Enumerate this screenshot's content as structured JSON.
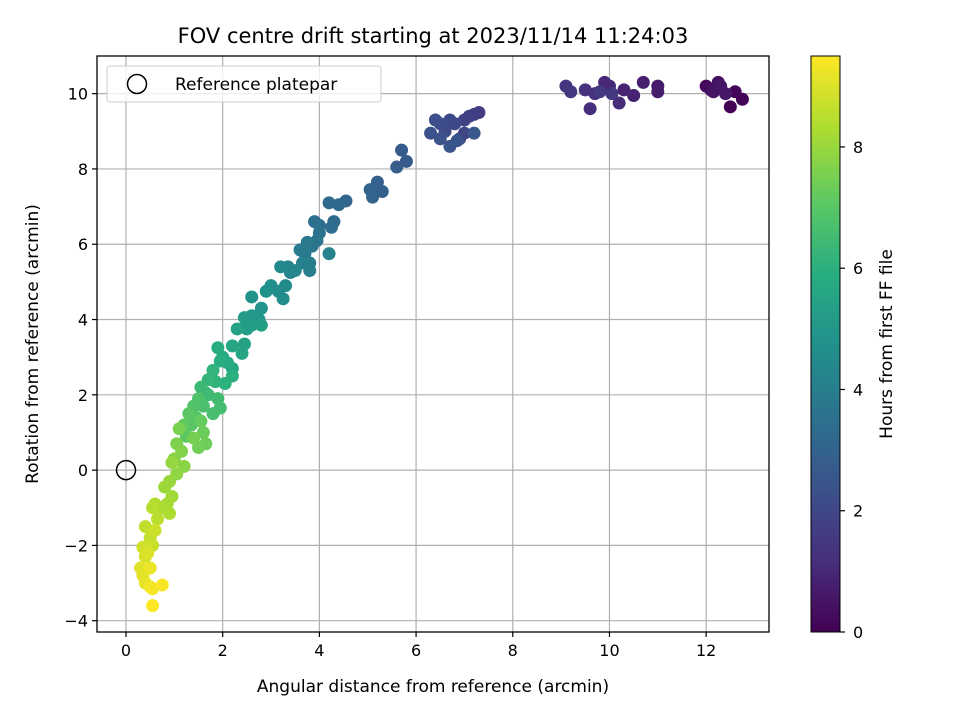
{
  "chart_data": {
    "type": "scatter",
    "title": "FOV centre drift starting at 2023/11/14 11:24:03",
    "xlabel": "Angular distance from reference (arcmin)",
    "ylabel": "Rotation from reference (arcmin)",
    "xlim": [
      -0.6,
      13.3
    ],
    "ylim": [
      -4.3,
      11.0
    ],
    "xticks": [
      0,
      2,
      4,
      6,
      8,
      10,
      12
    ],
    "yticks": [
      -4,
      -2,
      0,
      2,
      4,
      6,
      8,
      10
    ],
    "grid": true,
    "legend": {
      "placement": "top-left",
      "entries": [
        "Reference platepar"
      ]
    },
    "reference_point": {
      "x": 0,
      "y": 0,
      "label": "Reference platepar"
    },
    "colorbar": {
      "label": "Hours from first FF file",
      "colormap": "viridis",
      "range": [
        0,
        9.5
      ],
      "ticks": [
        0,
        2,
        4,
        6,
        8
      ]
    },
    "series": [
      {
        "points": [
          [
            12.5,
            9.65
          ],
          [
            12.75,
            9.85
          ],
          [
            12.6,
            10.05
          ],
          [
            12.0,
            10.2
          ],
          [
            12.1,
            10.1
          ],
          [
            12.2,
            10.15
          ],
          [
            12.25,
            10.3
          ],
          [
            12.15,
            10.05
          ],
          [
            12.3,
            10.2
          ],
          [
            12.4,
            10.0
          ],
          [
            11.0,
            10.2
          ],
          [
            11.0,
            10.05
          ],
          [
            10.7,
            10.3
          ],
          [
            10.5,
            9.95
          ],
          [
            10.3,
            10.1
          ],
          [
            10.0,
            10.2
          ],
          [
            9.9,
            10.3
          ],
          [
            10.2,
            9.75
          ],
          [
            9.6,
            9.6
          ],
          [
            9.7,
            10.0
          ],
          [
            9.5,
            10.1
          ],
          [
            9.1,
            10.2
          ],
          [
            9.2,
            10.05
          ],
          [
            10.05,
            10.0
          ],
          [
            9.8,
            10.05
          ],
          [
            7.3,
            9.5
          ],
          [
            7.2,
            9.45
          ],
          [
            7.1,
            9.4
          ],
          [
            7.0,
            9.3
          ],
          [
            7.0,
            8.95
          ],
          [
            6.9,
            8.8
          ],
          [
            6.8,
            9.2
          ],
          [
            6.7,
            9.3
          ],
          [
            6.6,
            9.0
          ],
          [
            6.5,
            9.2
          ],
          [
            6.4,
            9.3
          ],
          [
            6.3,
            8.95
          ],
          [
            6.5,
            8.8
          ],
          [
            6.7,
            8.6
          ],
          [
            6.85,
            8.75
          ],
          [
            7.2,
            8.95
          ],
          [
            5.8,
            8.2
          ],
          [
            5.7,
            8.5
          ],
          [
            5.6,
            8.05
          ],
          [
            5.2,
            7.65
          ],
          [
            5.3,
            7.4
          ],
          [
            5.05,
            7.45
          ],
          [
            5.1,
            7.25
          ],
          [
            4.55,
            7.15
          ],
          [
            4.4,
            7.05
          ],
          [
            4.2,
            7.1
          ],
          [
            4.3,
            6.6
          ],
          [
            4.25,
            6.45
          ],
          [
            4.0,
            6.5
          ],
          [
            3.9,
            6.6
          ],
          [
            4.0,
            6.3
          ],
          [
            3.95,
            6.1
          ],
          [
            3.85,
            5.95
          ],
          [
            3.75,
            6.05
          ],
          [
            3.7,
            5.75
          ],
          [
            3.6,
            5.85
          ],
          [
            3.8,
            5.5
          ],
          [
            3.8,
            5.3
          ],
          [
            3.65,
            5.5
          ],
          [
            4.2,
            5.75
          ],
          [
            3.35,
            5.4
          ],
          [
            3.4,
            5.25
          ],
          [
            3.5,
            5.3
          ],
          [
            3.2,
            5.4
          ],
          [
            3.3,
            4.9
          ],
          [
            3.15,
            4.75
          ],
          [
            3.25,
            4.55
          ],
          [
            3.0,
            4.9
          ],
          [
            2.9,
            4.75
          ],
          [
            2.6,
            4.6
          ],
          [
            2.8,
            4.3
          ],
          [
            2.75,
            4.0
          ],
          [
            2.6,
            4.1
          ],
          [
            2.5,
            3.9
          ],
          [
            2.45,
            4.05
          ],
          [
            2.5,
            3.75
          ],
          [
            2.6,
            3.85
          ],
          [
            2.8,
            3.85
          ],
          [
            2.3,
            3.75
          ],
          [
            2.45,
            3.35
          ],
          [
            2.4,
            3.1
          ],
          [
            2.2,
            3.3
          ],
          [
            2.2,
            2.7
          ],
          [
            2.1,
            2.85
          ],
          [
            2.0,
            3.0
          ],
          [
            1.9,
            3.25
          ],
          [
            1.95,
            2.9
          ],
          [
            2.2,
            2.5
          ],
          [
            2.05,
            2.3
          ],
          [
            1.85,
            2.35
          ],
          [
            1.8,
            2.65
          ],
          [
            1.7,
            2.4
          ],
          [
            1.65,
            2.05
          ],
          [
            1.55,
            2.2
          ],
          [
            1.7,
            2.0
          ],
          [
            1.9,
            1.9
          ],
          [
            1.95,
            1.65
          ],
          [
            1.8,
            1.5
          ],
          [
            1.6,
            1.7
          ],
          [
            1.5,
            1.9
          ],
          [
            1.4,
            1.7
          ],
          [
            1.45,
            1.4
          ],
          [
            1.35,
            1.2
          ],
          [
            1.3,
            1.5
          ],
          [
            1.25,
            0.9
          ],
          [
            1.2,
            1.2
          ],
          [
            1.55,
            1.3
          ],
          [
            1.6,
            1.0
          ],
          [
            1.65,
            0.7
          ],
          [
            1.5,
            0.6
          ],
          [
            1.4,
            0.85
          ],
          [
            1.1,
            1.1
          ],
          [
            1.05,
            0.7
          ],
          [
            1.15,
            0.5
          ],
          [
            1.0,
            0.3
          ],
          [
            1.2,
            0.1
          ],
          [
            1.05,
            -0.1
          ],
          [
            0.95,
            0.2
          ],
          [
            0.9,
            -0.3
          ],
          [
            0.8,
            -0.45
          ],
          [
            0.95,
            -0.7
          ],
          [
            0.85,
            -0.9
          ],
          [
            0.75,
            -1.0
          ],
          [
            0.9,
            -1.15
          ],
          [
            0.6,
            -0.9
          ],
          [
            0.55,
            -1.0
          ],
          [
            0.65,
            -1.3
          ],
          [
            0.4,
            -1.5
          ],
          [
            0.5,
            -1.8
          ],
          [
            0.55,
            -2.0
          ],
          [
            0.6,
            -1.6
          ],
          [
            0.35,
            -2.05
          ],
          [
            0.4,
            -2.3
          ],
          [
            0.45,
            -2.2
          ],
          [
            0.3,
            -2.6
          ],
          [
            0.35,
            -2.8
          ],
          [
            0.4,
            -3.0
          ],
          [
            0.5,
            -2.6
          ],
          [
            0.5,
            -3.1
          ],
          [
            0.55,
            -3.15
          ],
          [
            0.75,
            -3.05
          ],
          [
            0.55,
            -3.6
          ]
        ]
      }
    ]
  }
}
